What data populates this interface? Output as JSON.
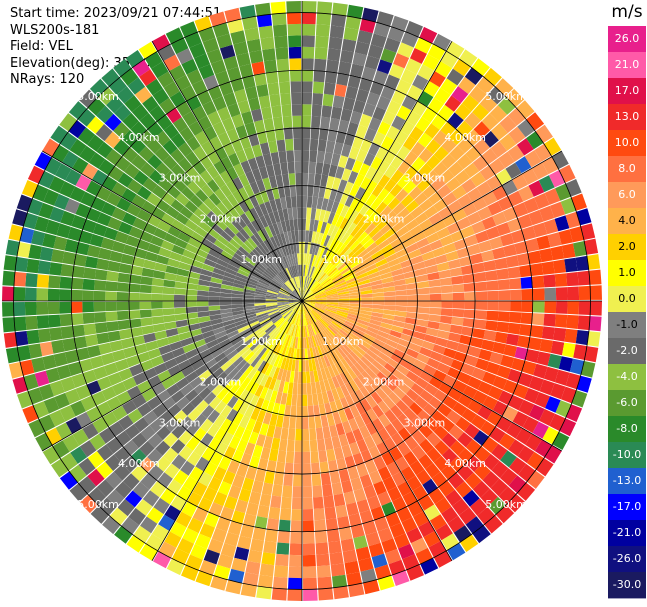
{
  "header": {
    "start_time": "Start time: 2023/09/21 07:44:51",
    "site": "WLS200s-181",
    "field": "Field: VEL",
    "elevation": "Elevation(deg): 35.30",
    "nrays": "NRays: 120"
  },
  "chart_data": {
    "type": "heatmap",
    "subtype": "polar-ppi",
    "field": "VEL",
    "units": "m/s",
    "range_rings_km": [
      1.0,
      2.0,
      3.0,
      4.0,
      5.0
    ],
    "range_ring_labels": [
      "1.00km",
      "2.00km",
      "3.00km",
      "4.00km",
      "5.00km"
    ],
    "max_range_km": 5.2,
    "n_rays": 120,
    "colorbar": {
      "label": "m/s",
      "ticks": [
        "26.0",
        "21.0",
        "17.0",
        "13.0",
        "10.0",
        "8.0",
        "6.0",
        "4.0",
        "2.0",
        "1.0",
        "0.0",
        "-1.0",
        "-2.0",
        "-4.0",
        "-6.0",
        "-8.0",
        "-10.0",
        "-13.0",
        "-17.0",
        "-21.0",
        "-26.0",
        "-30.0"
      ],
      "colors": [
        "#e8208c",
        "#ff5aa8",
        "#e0104a",
        "#f02a2a",
        "#ff4a10",
        "#ff7040",
        "#ff9a5a",
        "#ffb24a",
        "#ffd000",
        "#ffff00",
        "#f0f050",
        "#7f7f7f",
        "#6a6a6a",
        "#8ec040",
        "#5a9a30",
        "#2a8a2a",
        "#2a8a55",
        "#2060d0",
        "#0000ff",
        "#0000a0",
        "#101080",
        "#1a1a60"
      ]
    },
    "wind_pattern": {
      "description_of_field": "dipole velocity pattern",
      "receding_max_ms": 13.0,
      "approaching_max_ms": -10.0,
      "receding_azimuth_deg": 120,
      "approaching_azimuth_deg": 300
    }
  }
}
